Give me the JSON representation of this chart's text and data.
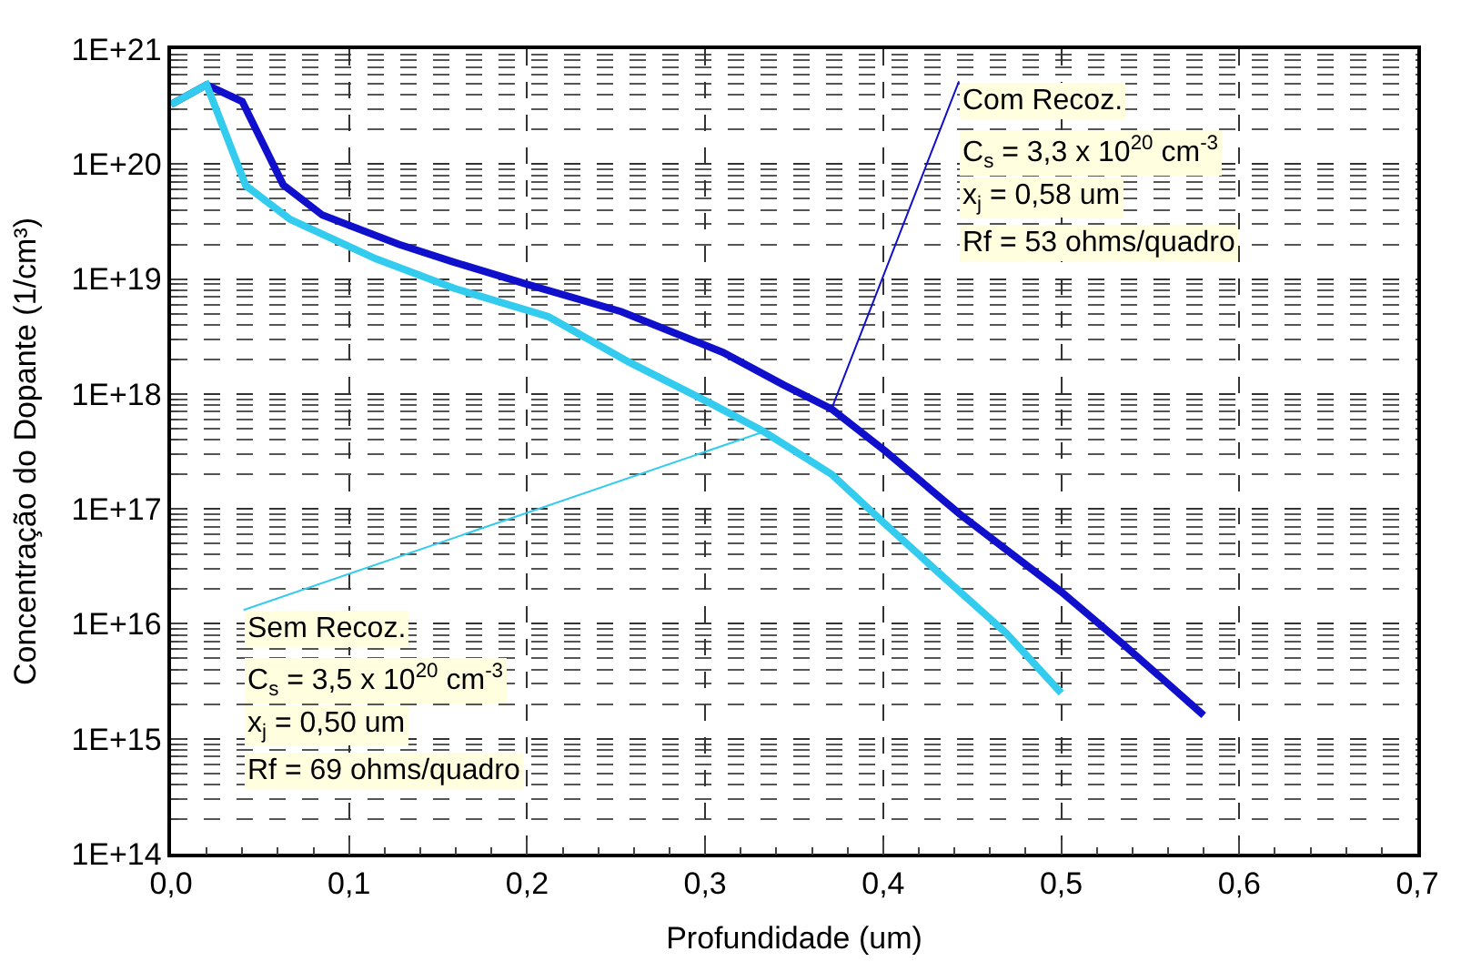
{
  "chart_data": {
    "type": "line",
    "xlabel": "Profundidade (um)",
    "ylabel": "Concentração do Dopante (1/cm³)",
    "log": "y",
    "grid": true,
    "marker": "none",
    "line_style": "solid",
    "xlim": [
      0,
      0.7
    ],
    "xticks": [
      {
        "value": 0,
        "label": "0,0"
      },
      {
        "value": 0.1,
        "label": "0,1"
      },
      {
        "value": 0.2,
        "label": "0,2"
      },
      {
        "value": 0.3,
        "label": "0,3"
      },
      {
        "value": 0.4,
        "label": "0,4"
      },
      {
        "value": 0.5,
        "label": "0,5"
      },
      {
        "value": 0.6,
        "label": "0,6"
      },
      {
        "value": 0.7,
        "label": "0,7"
      }
    ],
    "ylim": [
      100000000000000.0,
      1e+21
    ],
    "yticks": [
      {
        "value": 100000000000000.0,
        "label": "1E+14"
      },
      {
        "value": 1000000000000000.0,
        "label": "1E+15"
      },
      {
        "value": 1e+16,
        "label": "1E+16"
      },
      {
        "value": 1e+17,
        "label": "1E+17"
      },
      {
        "value": 1e+18,
        "label": "1E+18"
      },
      {
        "value": 1e+19,
        "label": "1E+19"
      },
      {
        "value": 1e+20,
        "label": "1E+20"
      },
      {
        "value": 1e+21,
        "label": "1E+21"
      }
    ],
    "series": [
      {
        "color": "#1010cc",
        "x": [
          0,
          0.02,
          0.04,
          0.063,
          0.085,
          0.128,
          0.159,
          0.2,
          0.253,
          0.31,
          0.344,
          0.371,
          0.401,
          0.443,
          0.5,
          0.535,
          0.58
        ],
        "values": [
          3.3e+20,
          4.9e+20,
          3.5e+20,
          6.6e+19,
          3.6e+19,
          2e+19,
          1.4e+19,
          9e+18,
          5.2e+18,
          2.3e+18,
          1.2e+18,
          7.4e+17,
          3.2e+17,
          9e+16,
          1.9e+16,
          6600000000000000.0,
          1600000000000000.0
        ]
      },
      {
        "color": "#33ccee",
        "x": [
          0,
          0.02,
          0.042,
          0.067,
          0.115,
          0.159,
          0.212,
          0.257,
          0.303,
          0.333,
          0.371,
          0.401,
          0.431,
          0.469,
          0.5
        ],
        "values": [
          3.3e+20,
          4.9e+20,
          6.5e+19,
          3.3e+19,
          1.5e+19,
          8.3e+18,
          4.7e+18,
          1.9e+18,
          8.3e+17,
          4.7e+17,
          2e+17,
          7.4e+16,
          2.8e+16,
          8300000000000000.0,
          2500000000000000.0
        ]
      }
    ],
    "annotations": [
      {
        "text": "Com Recoz.",
        "x": 0.371,
        "y": 7.4e+17
      },
      "C$_{s}$ = 3,3 x 10$^{20}$ cm$^{-3}$",
      "x$_{j}$ = 0,58 um",
      "Rf = 53 ohms/quadro",
      {
        "text": "Sem Recoz.",
        "x": 0.333,
        "y": 4.7e+17
      },
      "C$_{s}$ = 3,5 x 10$^{20}$ cm$^{-3}$",
      "x$_{j}$ = 0,50 um",
      "Rf = 69 ohms/quadro"
    ]
  }
}
